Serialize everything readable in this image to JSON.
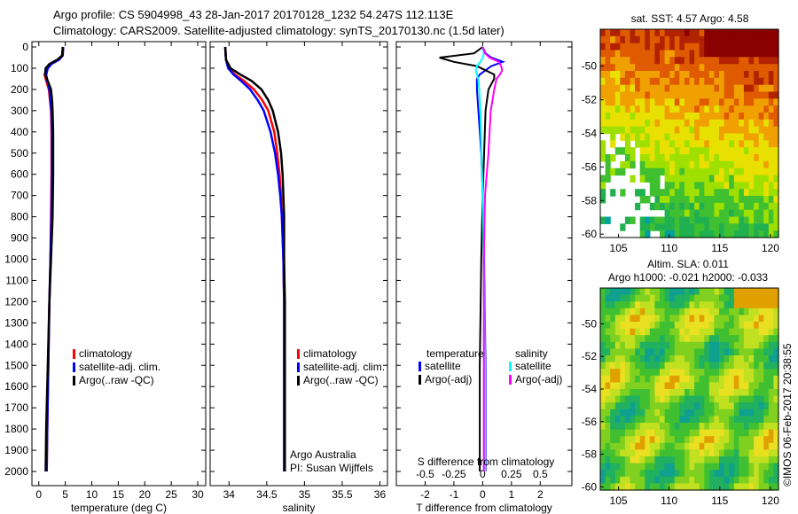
{
  "title": {
    "line1": "Argo profile: CS 5904998_43 28-Jan-2017 20170128_1232 54.247S 112.113E",
    "line2": "Climatology: CARS2009. Satellite-adjusted climatology: synTS_20170130.nc (1.5d later)"
  },
  "colors": {
    "climatology": "#ff0000",
    "satellite": "#0000ff",
    "argo": "#000000",
    "sal_satellite": "#00ffff",
    "sal_argo": "#ff00ff"
  },
  "chart_data": [
    {
      "type": "line",
      "name": "temperature",
      "xlabel": "temperature (deg C)",
      "xlim": [
        -1.3,
        31.5
      ],
      "ylim": [
        2060,
        0
      ],
      "xticks": [
        0,
        5,
        10,
        15,
        20,
        25,
        30
      ],
      "yticks": [
        0,
        100,
        200,
        300,
        400,
        500,
        600,
        700,
        800,
        900,
        1000,
        1100,
        1200,
        1300,
        1400,
        1500,
        1600,
        1700,
        1800,
        1900,
        2000
      ],
      "legend": [
        "climatology",
        "satellite-adj. clim.",
        "Argo(..raw -QC)"
      ],
      "depth": [
        0,
        40,
        60,
        80,
        100,
        130,
        160,
        200,
        250,
        300,
        400,
        600,
        800,
        1000,
        1200,
        1500,
        1800,
        2000
      ],
      "series": [
        {
          "name": "climatology",
          "values": [
            4.6,
            4.5,
            3.8,
            2.3,
            1.5,
            1.1,
            1.4,
            1.9,
            2.1,
            2.3,
            2.4,
            2.4,
            2.3,
            2.2,
            2.0,
            1.8,
            1.6,
            1.5
          ]
        },
        {
          "name": "satellite-adj. clim.",
          "values": [
            4.6,
            4.5,
            3.8,
            2.4,
            1.7,
            1.4,
            1.6,
            2.0,
            2.2,
            2.4,
            2.5,
            2.5,
            2.4,
            2.2,
            2.0,
            1.8,
            1.6,
            1.5
          ]
        },
        {
          "name": "Argo(..raw -QC)",
          "values": [
            4.5,
            4.4,
            3.5,
            2.0,
            1.3,
            1.2,
            1.7,
            2.3,
            2.5,
            2.6,
            2.7,
            2.7,
            2.6,
            2.3,
            2.0,
            1.7,
            1.4,
            1.3
          ]
        }
      ]
    },
    {
      "type": "line",
      "name": "salinity",
      "xlabel": "salinity",
      "xlim": [
        33.75,
        36.1
      ],
      "ylim": [
        2060,
        0
      ],
      "xticks": [
        34,
        34.5,
        35,
        35.5,
        36
      ],
      "xticklabels": [
        "34",
        "34.5",
        "35",
        "35.5",
        "36"
      ],
      "legend": [
        "climatology",
        "satellite-adj. clim.",
        "Argo(..raw -QC)"
      ],
      "annotation": [
        "Argo Australia",
        "PI: Susan Wijffels"
      ],
      "depth": [
        0,
        60,
        100,
        130,
        160,
        200,
        250,
        300,
        400,
        500,
        600,
        700,
        800,
        1000,
        1200,
        1500,
        2000
      ],
      "series": [
        {
          "name": "climatology",
          "values": [
            33.95,
            33.96,
            33.99,
            34.08,
            34.2,
            34.33,
            34.44,
            34.52,
            34.6,
            34.64,
            34.67,
            34.69,
            34.7,
            34.72,
            34.73,
            34.73,
            34.73
          ]
        },
        {
          "name": "satellite-adj. clim.",
          "values": [
            33.95,
            33.96,
            33.99,
            34.06,
            34.16,
            34.28,
            34.38,
            34.46,
            34.55,
            34.61,
            34.65,
            34.68,
            34.7,
            34.72,
            34.73,
            34.73,
            34.73
          ]
        },
        {
          "name": "Argo(..raw -QC)",
          "values": [
            33.95,
            33.96,
            34.02,
            34.15,
            34.3,
            34.43,
            34.52,
            34.58,
            34.65,
            34.69,
            34.71,
            34.72,
            34.73,
            34.73,
            34.74,
            34.74,
            34.74
          ]
        }
      ]
    },
    {
      "type": "line",
      "name": "differences",
      "xlabel": "T difference from climatology",
      "x2label": "S difference from climatology",
      "xlim": [
        -3,
        3.1
      ],
      "x2lim": [
        -0.75,
        0.775
      ],
      "ylim": [
        2060,
        0
      ],
      "xticks": [
        -2,
        -1,
        0,
        1,
        2
      ],
      "x2ticks": [
        -0.5,
        -0.25,
        0,
        0.25,
        0.5
      ],
      "x2ticklabels": [
        "-0.5",
        "-0.25",
        "0",
        "0.25",
        "0.5"
      ],
      "legend": {
        "temperature": "temperature",
        "salinity": "salinity",
        "t_sat": "satellite",
        "t_argo": "Argo(-adj)",
        "s_sat": "satellite",
        "s_argo": "Argo(-adj)"
      },
      "depth": [
        0,
        30,
        50,
        70,
        90,
        110,
        130,
        150,
        200,
        300,
        500,
        700,
        1000,
        1500,
        2000
      ],
      "series": [
        {
          "name": "T satellite",
          "kind": "T",
          "values": [
            0,
            0.1,
            0.3,
            0.7,
            0.3,
            0.1,
            -0.1,
            -0.2,
            -0.2,
            -0.15,
            -0.05,
            0,
            0.05,
            0.1,
            0.1
          ]
        },
        {
          "name": "T Argo(-adj)",
          "kind": "T",
          "values": [
            0,
            -0.3,
            -1.5,
            -1.0,
            -0.2,
            0.1,
            0.4,
            0.4,
            0.2,
            0.1,
            0.05,
            0,
            -0.05,
            -0.1,
            -0.1
          ]
        },
        {
          "name": "S satellite",
          "kind": "S",
          "values": [
            0,
            0.01,
            0,
            -0.02,
            -0.05,
            -0.06,
            -0.05,
            -0.04,
            -0.03,
            -0.02,
            -0.01,
            0,
            0.01,
            0.02,
            0.02
          ]
        },
        {
          "name": "S Argo(-adj)",
          "kind": "S",
          "values": [
            0,
            0.02,
            0.06,
            0.14,
            0.16,
            0.17,
            0.15,
            0.12,
            0.1,
            0.07,
            0.05,
            0.02,
            0.01,
            0.01,
            0.01
          ]
        }
      ]
    },
    {
      "type": "heatmap",
      "name": "sst-map",
      "title": "sat. SST: 4.57  Argo: 4.58",
      "xlim": [
        103.2,
        120.8
      ],
      "ylim": [
        -60.2,
        -47.8
      ],
      "xticks": [
        105,
        110,
        115,
        120
      ],
      "yticks": [
        -50,
        -52,
        -54,
        -56,
        -58,
        -60
      ]
    },
    {
      "type": "heatmap",
      "name": "sla-map",
      "title1": "Altim. SLA: 0.011",
      "title2": "Argo h1000: -0.021 h2000: -0.033",
      "xlim": [
        103.2,
        120.8
      ],
      "ylim": [
        -60.2,
        -47.8
      ],
      "xticks": [
        105,
        110,
        115,
        120
      ],
      "yticks": [
        -50,
        -52,
        -54,
        -56,
        -58,
        -60
      ],
      "stamp": "©IMOS 06-Feb-2017 20:38:55"
    }
  ]
}
